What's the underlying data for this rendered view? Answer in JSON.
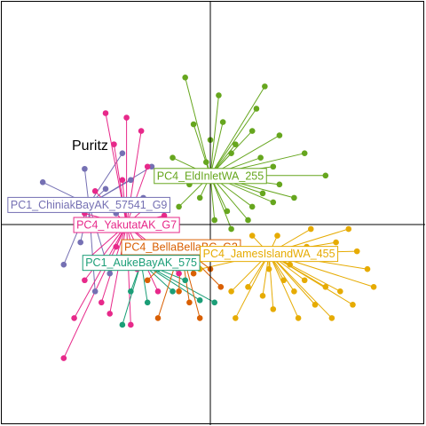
{
  "chart_data": {
    "type": "scatter",
    "title": "Puritz",
    "xlim": [
      -1,
      1
    ],
    "ylim": [
      -1,
      1
    ],
    "grid": false,
    "axes_lines": "cross-at-origin",
    "series": [
      {
        "name": "PC4_EldInletWA_255",
        "color": "#66a61e",
        "centroid": [
          0.0,
          0.22
        ],
        "points": [
          [
            -0.12,
            0.66
          ],
          [
            0.26,
            0.62
          ],
          [
            0.33,
            0.4
          ],
          [
            0.1,
            0.32
          ],
          [
            0.0,
            0.38
          ],
          [
            0.06,
            0.46
          ],
          [
            0.2,
            0.42
          ],
          [
            0.3,
            0.26
          ],
          [
            0.55,
            0.22
          ],
          [
            0.45,
            0.32
          ],
          [
            -0.05,
            0.12
          ],
          [
            0.08,
            0.06
          ],
          [
            0.18,
            0.02
          ],
          [
            -0.1,
            0.18
          ],
          [
            0.25,
            0.14
          ],
          [
            0.3,
            0.1
          ],
          [
            0.12,
            0.36
          ],
          [
            -0.18,
            0.3
          ],
          [
            0.04,
            0.58
          ],
          [
            0.22,
            0.52
          ],
          [
            -0.02,
            0.28
          ],
          [
            0.16,
            0.2
          ],
          [
            0.4,
            0.12
          ],
          [
            0.1,
            -0.02
          ],
          [
            0.02,
            0.02
          ],
          [
            -0.06,
            0.24
          ],
          [
            0.24,
            0.3
          ],
          [
            -0.15,
            0.08
          ],
          [
            0.33,
            0.18
          ],
          [
            0.05,
            0.24
          ],
          [
            0.2,
            0.08
          ],
          [
            -0.08,
            0.45
          ]
        ]
      },
      {
        "name": "PC4_JamesIslandWA_455",
        "color": "#e6ab02",
        "centroid": [
          0.28,
          -0.13
        ],
        "points": [
          [
            0.25,
            -0.32
          ],
          [
            0.38,
            -0.18
          ],
          [
            0.45,
            -0.25
          ],
          [
            0.6,
            -0.08
          ],
          [
            0.7,
            -0.12
          ],
          [
            0.55,
            -0.28
          ],
          [
            0.42,
            -0.42
          ],
          [
            0.18,
            -0.28
          ],
          [
            0.1,
            -0.3
          ],
          [
            0.32,
            -0.05
          ],
          [
            0.48,
            -0.02
          ],
          [
            0.62,
            -0.3
          ],
          [
            0.75,
            -0.2
          ],
          [
            0.3,
            -0.38
          ],
          [
            0.05,
            -0.08
          ],
          [
            0.2,
            -0.05
          ],
          [
            0.52,
            -0.15
          ],
          [
            0.66,
            -0.02
          ],
          [
            0.4,
            -0.3
          ],
          [
            0.15,
            -0.12
          ],
          [
            -0.05,
            -0.2
          ],
          [
            0.35,
            -0.25
          ],
          [
            0.58,
            -0.42
          ],
          [
            0.28,
            -0.2
          ],
          [
            0.46,
            -0.1
          ],
          [
            0.78,
            -0.28
          ],
          [
            0.22,
            -0.14
          ],
          [
            0.68,
            -0.36
          ],
          [
            0.12,
            -0.42
          ],
          [
            0.5,
            -0.36
          ]
        ]
      },
      {
        "name": "PC1_ChiniakBayAK_57541_G9",
        "color": "#7570b3",
        "centroid": [
          -0.58,
          0.09
        ],
        "points": [
          [
            -0.8,
            0.19
          ],
          [
            -0.6,
            0.25
          ],
          [
            -0.5,
            0.16
          ],
          [
            -0.45,
            0.05
          ],
          [
            -0.62,
            -0.08
          ],
          [
            -0.55,
            -0.3
          ],
          [
            -0.38,
            0.2
          ],
          [
            -0.66,
            0.1
          ],
          [
            -0.32,
            0.12
          ],
          [
            -0.7,
            -0.18
          ],
          [
            -0.48,
            -0.22
          ],
          [
            -0.28,
            0.26
          ],
          [
            -0.42,
            0.32
          ],
          [
            -0.58,
            0.02
          ]
        ]
      },
      {
        "name": "PC4_YakutatAK_G7",
        "color": "#e7298a",
        "centroid": [
          -0.4,
          0.0
        ],
        "points": [
          [
            -0.5,
            0.5
          ],
          [
            -0.4,
            0.48
          ],
          [
            -0.7,
            -0.6
          ],
          [
            -0.48,
            -0.4
          ],
          [
            -0.6,
            -0.25
          ],
          [
            -0.3,
            0.26
          ],
          [
            -0.42,
            0.2
          ],
          [
            -0.55,
            0.15
          ],
          [
            -0.35,
            -0.2
          ],
          [
            -0.25,
            -0.3
          ],
          [
            -0.6,
            0.05
          ],
          [
            -0.45,
            -0.1
          ],
          [
            -0.2,
            -0.15
          ],
          [
            -0.52,
            -0.35
          ],
          [
            -0.38,
            -0.45
          ],
          [
            -0.65,
            -0.42
          ],
          [
            -0.28,
            0.1
          ],
          [
            -0.15,
            -0.22
          ],
          [
            -0.46,
            0.36
          ],
          [
            -0.33,
            0.42
          ],
          [
            -0.58,
            -0.15
          ],
          [
            -0.22,
            0.04
          ]
        ]
      },
      {
        "name": "PC1_AukeBayAK_575",
        "color": "#1b9e77",
        "centroid": [
          -0.33,
          -0.17
        ],
        "points": [
          [
            -0.42,
            -0.45
          ],
          [
            -0.3,
            -0.35
          ],
          [
            -0.18,
            -0.3
          ],
          [
            -0.05,
            -0.34
          ],
          [
            0.02,
            -0.35
          ],
          [
            -0.12,
            -0.25
          ],
          [
            -0.38,
            -0.3
          ],
          [
            -0.25,
            -0.2
          ]
        ]
      },
      {
        "name": "PC4_BellaBellaBC_G2",
        "color": "#d95f02",
        "centroid": [
          -0.14,
          -0.1
        ],
        "points": [
          [
            -0.25,
            -0.42
          ],
          [
            -0.05,
            -0.42
          ],
          [
            -0.15,
            -0.3
          ],
          [
            0.0,
            -0.2
          ],
          [
            -0.3,
            -0.25
          ],
          [
            -0.1,
            -0.35
          ],
          [
            -0.2,
            -0.15
          ],
          [
            0.05,
            -0.28
          ],
          [
            -0.08,
            -0.22
          ]
        ]
      }
    ],
    "labels": [
      {
        "series": 0,
        "text": "PC4_EldInletWA_255"
      },
      {
        "series": 2,
        "text": "PC1_ChiniakBayAK_57541_G9"
      },
      {
        "series": 3,
        "text": "PC4_YakutatAK_G7"
      },
      {
        "series": 5,
        "text": "PC4_BellaBellaBC_G2"
      },
      {
        "series": 4,
        "text": "PC1_AukeBayAK_575"
      },
      {
        "series": 1,
        "text": "PC4_JamesIslandWA_455"
      }
    ]
  }
}
